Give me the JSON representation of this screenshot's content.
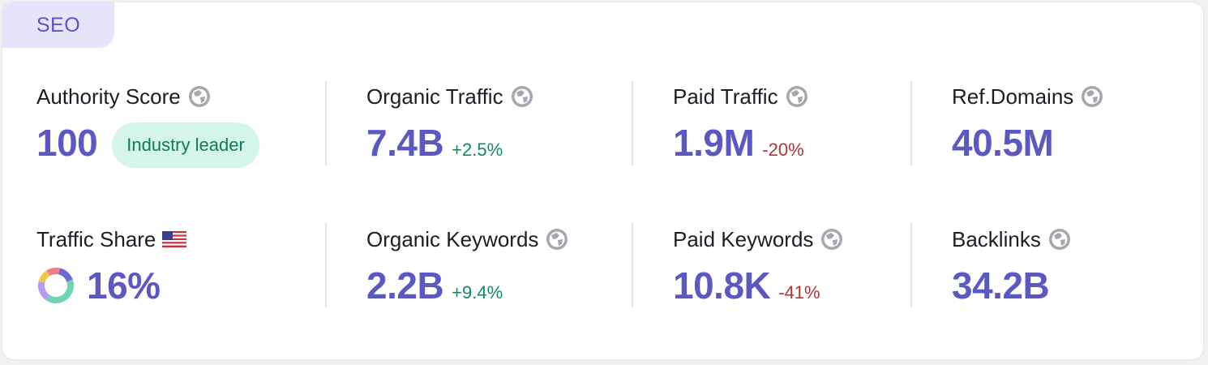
{
  "tab": {
    "label": "SEO"
  },
  "colors": {
    "accent": "#5b58c2",
    "positive": "#0e8a62",
    "negative": "#b53233",
    "badge_bg": "#d5f4ea",
    "tab_bg": "#e6e4fb"
  },
  "metrics": {
    "authority_score": {
      "label": "Authority Score",
      "value": "100",
      "badge": "Industry leader",
      "icon": "globe-icon"
    },
    "organic_traffic": {
      "label": "Organic Traffic",
      "value": "7.4B",
      "change": "+2.5%",
      "icon": "globe-icon"
    },
    "paid_traffic": {
      "label": "Paid Traffic",
      "value": "1.9M",
      "change": "-20%",
      "icon": "globe-icon"
    },
    "ref_domains": {
      "label": "Ref.Domains",
      "value": "40.5M",
      "icon": "globe-icon"
    },
    "traffic_share": {
      "label": "Traffic Share",
      "value": "16%",
      "icon": "us-flag-icon",
      "chart_icon": "donut-chart-icon"
    },
    "organic_keywords": {
      "label": "Organic Keywords",
      "value": "2.2B",
      "change": "+9.4%",
      "icon": "globe-icon"
    },
    "paid_keywords": {
      "label": "Paid Keywords",
      "value": "10.8K",
      "change": "-41%",
      "icon": "globe-icon"
    },
    "backlinks": {
      "label": "Backlinks",
      "value": "34.2B",
      "icon": "globe-icon"
    }
  }
}
